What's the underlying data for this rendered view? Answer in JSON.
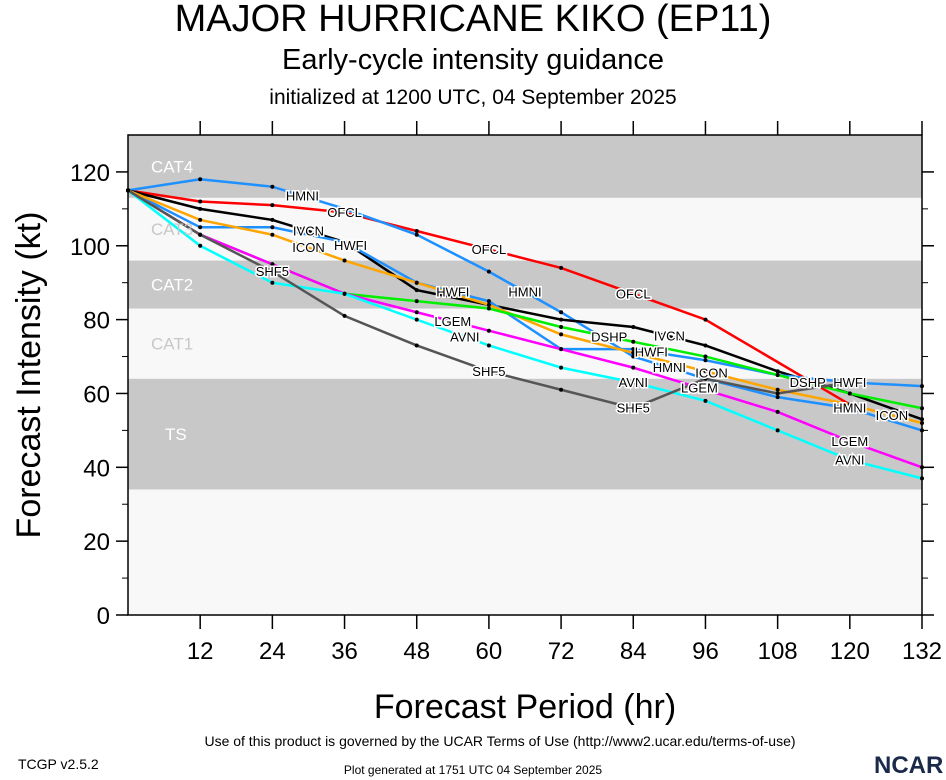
{
  "header": {
    "title": "MAJOR HURRICANE KIKO (EP11)",
    "subtitle": "Early-cycle intensity guidance",
    "init": "initialized at 1200 UTC, 04 September 2025"
  },
  "footer": {
    "terms": "Use of this product is governed by the UCAR Terms of Use (http://www2.ucar.edu/terms-of-use)",
    "generated": "Plot generated at 1751 UTC   04 September 2025",
    "version": "TCGP v2.5.2",
    "logo": "NCAR"
  },
  "chart_data": {
    "type": "line",
    "title": "MAJOR HURRICANE KIKO (EP11)",
    "xlabel": "Forecast Period (hr)",
    "ylabel": "Forecast Intensity (kt)",
    "xlim": [
      0,
      132
    ],
    "ylim": [
      0,
      130
    ],
    "xticks": [
      12,
      24,
      36,
      48,
      60,
      72,
      84,
      96,
      108,
      120,
      132
    ],
    "yticks": [
      0,
      20,
      40,
      60,
      80,
      100,
      120
    ],
    "bands": [
      {
        "label": "TS",
        "from": 34,
        "to": 64,
        "color": "#c8c8c8"
      },
      {
        "label": "CAT1",
        "from": 64,
        "to": 83,
        "color": "#f8f8f8"
      },
      {
        "label": "CAT2",
        "from": 83,
        "to": 96,
        "color": "#c8c8c8"
      },
      {
        "label": "CAT3",
        "from": 96,
        "to": 113,
        "color": "#f8f8f8"
      },
      {
        "label": "CAT4",
        "from": 113,
        "to": 137,
        "color": "#c8c8c8"
      }
    ],
    "series": [
      {
        "name": "OFCL",
        "color": "#ff0000",
        "label_at": [
          36,
          60,
          84
        ],
        "x": [
          0,
          12,
          24,
          36,
          48,
          60,
          72,
          96,
          120
        ],
        "y": [
          115,
          112,
          111,
          109,
          104,
          99,
          94,
          80,
          57
        ]
      },
      {
        "name": "HMNI",
        "color": "#1e90ff",
        "label_at": [
          30,
          66,
          90,
          120
        ],
        "x": [
          0,
          12,
          24,
          36,
          48,
          60,
          72,
          84,
          96,
          108,
          120,
          132
        ],
        "y": [
          115,
          118,
          116,
          110,
          103,
          93,
          82,
          70,
          64,
          59,
          56,
          50
        ]
      },
      {
        "name": "IVCN",
        "color": "#000000",
        "label_at": [
          30,
          90
        ],
        "x": [
          0,
          12,
          24,
          36,
          48,
          60,
          72,
          84,
          96,
          108,
          120,
          132
        ],
        "y": [
          115,
          110,
          107,
          101,
          88,
          84,
          80,
          78,
          73,
          66,
          60,
          53
        ]
      },
      {
        "name": "HWFI",
        "color": "#1e90ff",
        "label_at": [
          30,
          54,
          90,
          120
        ],
        "x": [
          0,
          12,
          24,
          36,
          48,
          60,
          72,
          84,
          96,
          108,
          120,
          132
        ],
        "y": [
          115,
          105,
          105,
          101,
          90,
          85,
          72,
          72,
          69,
          65,
          63,
          62
        ]
      },
      {
        "name": "ICON",
        "color": "#ffa500",
        "label_at": [
          30,
          90,
          120
        ],
        "x": [
          0,
          12,
          24,
          36,
          48,
          60,
          72,
          84,
          96,
          108,
          120,
          132
        ],
        "y": [
          115,
          107,
          103,
          96,
          90,
          84,
          76,
          71,
          66,
          61,
          57,
          52
        ]
      },
      {
        "name": "DSHP",
        "color": "#00ee00",
        "label_at": [
          90,
          120
        ],
        "x": [
          0,
          12,
          24,
          36,
          48,
          60,
          72,
          84,
          96,
          108,
          120,
          132
        ],
        "y": [
          115,
          103,
          95,
          87,
          85,
          83,
          78,
          74,
          70,
          65,
          60,
          56
        ]
      },
      {
        "name": "LGEM",
        "color": "#ff00ff",
        "label_at": [
          54,
          90,
          120
        ],
        "x": [
          0,
          12,
          24,
          36,
          48,
          60,
          72,
          84,
          96,
          108,
          120,
          132
        ],
        "y": [
          115,
          103,
          95,
          87,
          82,
          77,
          72,
          67,
          61,
          55,
          47,
          40
        ]
      },
      {
        "name": "AVNI",
        "color": "#00ffff",
        "label_at": [
          54,
          84,
          120
        ],
        "x": [
          0,
          12,
          24,
          36,
          48,
          60,
          72,
          84,
          96,
          108,
          120,
          132
        ],
        "y": [
          115,
          100,
          90,
          87,
          80,
          73,
          67,
          63,
          58,
          50,
          42,
          37
        ]
      },
      {
        "name": "SHF5",
        "color": "#555555",
        "label_at": [
          24,
          60,
          84
        ],
        "x": [
          0,
          12,
          24,
          36,
          48,
          60,
          72,
          84,
          96,
          108,
          120
        ],
        "y": [
          115,
          103,
          93,
          81,
          73,
          66,
          61,
          56,
          64,
          60,
          63
        ]
      }
    ]
  }
}
